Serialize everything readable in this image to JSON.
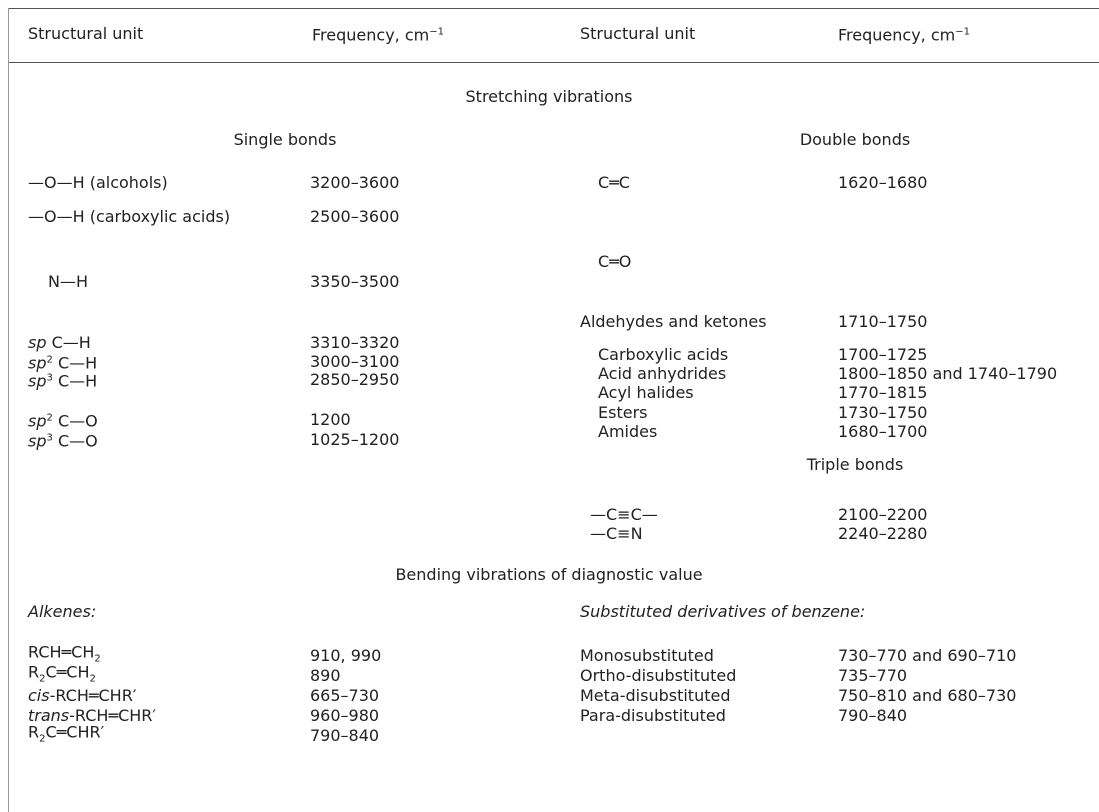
{
  "header": [
    [
      {
        "t": "Structural unit"
      }
    ],
    [
      {
        "t": "Frequency, cm"
      },
      {
        "t": "−1",
        "s": "sup"
      }
    ],
    [
      {
        "t": "Structural unit"
      }
    ],
    [
      {
        "t": "Frequency, cm"
      },
      {
        "t": "−1",
        "s": "sup"
      }
    ]
  ],
  "stretching": {
    "title": "Stretching vibrations",
    "single": {
      "title": "Single bonds",
      "rows": [
        {
          "unit": [
            {
              "t": "—O—H (alcohols)"
            }
          ],
          "freq": "3200–3600"
        },
        {
          "unit": [
            {
              "t": "—O—H (carboxylic acids)"
            }
          ],
          "freq": "2500–3600"
        },
        {
          "unit": [
            {
              "t": "N—H"
            }
          ],
          "freq": "3350–3500"
        },
        {
          "unit": [
            {
              "t": "sp",
              "s": "i"
            },
            {
              "t": " C—H"
            }
          ],
          "freq": "3310–3320"
        },
        {
          "unit": [
            {
              "t": "sp",
              "s": "i"
            },
            {
              "t": "2",
              "s": "sup"
            },
            {
              "t": " C—H"
            }
          ],
          "freq": "3000–3100"
        },
        {
          "unit": [
            {
              "t": "sp",
              "s": "i"
            },
            {
              "t": "3",
              "s": "sup"
            },
            {
              "t": " C—H"
            }
          ],
          "freq": "2850–2950"
        },
        {
          "unit": [
            {
              "t": "sp",
              "s": "i"
            },
            {
              "t": "2",
              "s": "sup"
            },
            {
              "t": " C—O"
            }
          ],
          "freq": "1200"
        },
        {
          "unit": [
            {
              "t": "sp",
              "s": "i"
            },
            {
              "t": "3",
              "s": "sup"
            },
            {
              "t": " C—O"
            }
          ],
          "freq": "1025–1200"
        }
      ]
    },
    "double": {
      "title": "Double bonds",
      "rows": [
        {
          "unit": [
            {
              "t": "C═C"
            }
          ],
          "freq": "1620–1680"
        },
        {
          "unit": [
            {
              "t": "C═O"
            }
          ]
        },
        {
          "unit": [
            {
              "t": "Aldehydes and ketones"
            }
          ],
          "freq": "1710–1750"
        },
        {
          "unit": [
            {
              "t": "Carboxylic acids"
            }
          ],
          "freq": "1700–1725"
        },
        {
          "unit": [
            {
              "t": "Acid anhydrides"
            }
          ],
          "freq": "1800–1850 and 1740–1790"
        },
        {
          "unit": [
            {
              "t": "Acyl halides"
            }
          ],
          "freq": "1770–1815"
        },
        {
          "unit": [
            {
              "t": "Esters"
            }
          ],
          "freq": "1730–1750"
        },
        {
          "unit": [
            {
              "t": "Amides"
            }
          ],
          "freq": "1680–1700"
        }
      ]
    },
    "triple": {
      "title": "Triple bonds",
      "rows": [
        {
          "unit": [
            {
              "t": "—C≡C—"
            }
          ],
          "freq": "2100–2200"
        },
        {
          "unit": [
            {
              "t": "—C≡N"
            }
          ],
          "freq": "2240–2280"
        }
      ]
    }
  },
  "bending": {
    "title": "Bending vibrations of diagnostic value",
    "alkenes": {
      "title": "Alkenes:",
      "rows": [
        {
          "unit": [
            {
              "t": "RCH═CH"
            },
            {
              "t": "2",
              "s": "sub"
            }
          ],
          "freq": "910, 990"
        },
        {
          "unit": [
            {
              "t": "R"
            },
            {
              "t": "2",
              "s": "sub"
            },
            {
              "t": "C═CH"
            },
            {
              "t": "2",
              "s": "sub"
            }
          ],
          "freq": "890"
        },
        {
          "unit": [
            {
              "t": "cis",
              "s": "i"
            },
            {
              "t": "-RCH═CHR′"
            }
          ],
          "freq": "665–730"
        },
        {
          "unit": [
            {
              "t": "trans",
              "s": "i"
            },
            {
              "t": "-RCH═CHR′"
            }
          ],
          "freq": "960–980"
        },
        {
          "unit": [
            {
              "t": "R"
            },
            {
              "t": "2",
              "s": "sub"
            },
            {
              "t": "C═CHR′"
            }
          ],
          "freq": "790–840"
        }
      ]
    },
    "benzene": {
      "title": "Substituted derivatives of benzene:",
      "rows": [
        {
          "unit": [
            {
              "t": "Monosubstituted"
            }
          ],
          "freq": "730–770 and 690–710"
        },
        {
          "unit": [
            {
              "t": "Ortho-disubstituted"
            }
          ],
          "freq": "735–770"
        },
        {
          "unit": [
            {
              "t": "Meta-disubstituted"
            }
          ],
          "freq": "750–810 and 680–730"
        },
        {
          "unit": [
            {
              "t": "Para-disubstituted"
            }
          ],
          "freq": "790–840"
        }
      ]
    }
  }
}
